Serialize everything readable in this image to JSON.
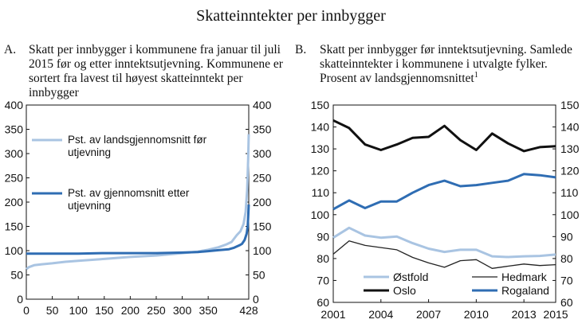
{
  "main_title": "Skatteinntekter per innbygger",
  "panel_a": {
    "label": "A.",
    "title": "Skatt per innbygger i kommunene fra januar til juli 2015 før og etter inntektsutjevning. Kommunene er sortert fra lavest til høyest skatteinntekt per innbygger"
  },
  "panel_b": {
    "label": "B.",
    "title": "Skatt per innbygger før inntektsutjevning. Samlede skatteinntekter i kommunene i utvalgte fylker. Prosent av landsgjennomsnittet",
    "footnote_mark": "1"
  },
  "chart_data": [
    {
      "type": "line",
      "panel": "A",
      "xlim": [
        0,
        428
      ],
      "x_ticks": [
        "0",
        "50",
        "100",
        "150",
        "200",
        "250",
        "300",
        "350",
        "428"
      ],
      "x_tick_values": [
        0,
        50,
        100,
        150,
        200,
        250,
        300,
        350,
        428
      ],
      "ylim": [
        0,
        400
      ],
      "y_ticks": [
        0,
        50,
        100,
        150,
        200,
        250,
        300,
        350,
        400
      ],
      "grid": false,
      "legend_position": "top-left",
      "series": [
        {
          "name": "Pst. av landsgjennomsnitt før utjevning",
          "color": "#a9c4e2",
          "x": [
            0,
            5,
            15,
            30,
            50,
            75,
            100,
            150,
            200,
            250,
            300,
            330,
            350,
            370,
            385,
            395,
            405,
            412,
            418,
            422,
            425,
            427,
            428
          ],
          "y": [
            62,
            66,
            70,
            72,
            74,
            77,
            79,
            83,
            87,
            90,
            95,
            98,
            102,
            107,
            113,
            118,
            132,
            140,
            155,
            180,
            225,
            290,
            340
          ]
        },
        {
          "name": "Pst. av gjennomsnitt etter utjevning",
          "color": "#2f6db3",
          "x": [
            0,
            50,
            100,
            150,
            200,
            250,
            300,
            330,
            350,
            370,
            390,
            400,
            410,
            415,
            420,
            424,
            426,
            427,
            428
          ],
          "y": [
            94,
            94,
            94,
            95,
            95,
            95,
            96,
            97,
            99,
            101,
            103,
            106,
            111,
            114,
            122,
            135,
            150,
            170,
            195
          ]
        }
      ]
    },
    {
      "type": "line",
      "panel": "B",
      "x_ticks": [
        "2001",
        "2004",
        "2007",
        "2010",
        "2013",
        "2015"
      ],
      "x_tick_values": [
        2001,
        2004,
        2007,
        2010,
        2013,
        2015
      ],
      "xlim": [
        2001,
        2015
      ],
      "ylim": [
        60,
        150
      ],
      "y_ticks": [
        60,
        70,
        80,
        90,
        100,
        110,
        120,
        130,
        140,
        150
      ],
      "grid": false,
      "legend_position": "bottom",
      "x": [
        2001,
        2002,
        2003,
        2004,
        2005,
        2006,
        2007,
        2008,
        2009,
        2010,
        2011,
        2012,
        2013,
        2014,
        2015
      ],
      "series": [
        {
          "name": "Østfold",
          "color": "#a9c4e2",
          "values": [
            89.5,
            94,
            90.5,
            89.5,
            90,
            87,
            84.5,
            83,
            84,
            84,
            81,
            80.7,
            81,
            81.2,
            81.8
          ]
        },
        {
          "name": "Hedmark",
          "color": "#222222",
          "values": [
            82,
            88,
            86,
            85,
            84,
            80.5,
            78,
            76,
            79,
            79.5,
            75.5,
            76.5,
            77.5,
            76.8,
            77.2
          ]
        },
        {
          "name": "Oslo",
          "color": "#111111",
          "values": [
            143,
            139.5,
            132,
            129.5,
            132,
            135,
            135.5,
            140.5,
            134,
            129.5,
            137,
            132.5,
            129,
            130.8,
            131.2
          ]
        },
        {
          "name": "Rogaland",
          "color": "#2f6db3",
          "values": [
            102.5,
            106.5,
            103,
            106,
            106,
            110,
            113.5,
            115.5,
            113,
            113.5,
            114.5,
            115.5,
            118.5,
            118,
            117
          ]
        }
      ]
    }
  ]
}
